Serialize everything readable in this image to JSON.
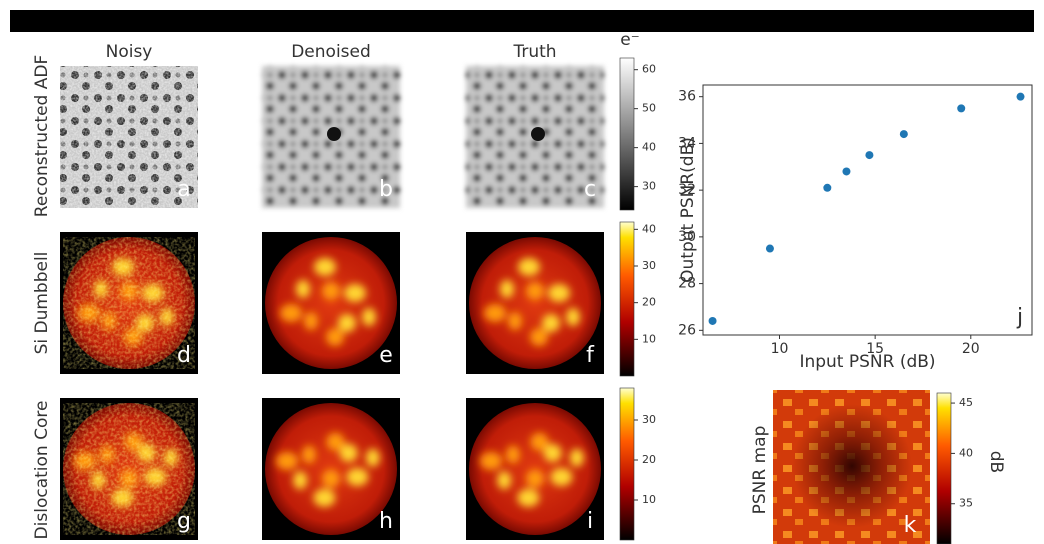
{
  "column_titles": [
    "Noisy",
    "Denoised",
    "Truth"
  ],
  "row_titles": [
    "Reconstructed ADF",
    "Si Dumbbell",
    "Dislocation Core"
  ],
  "panels": [
    "a",
    "b",
    "c",
    "d",
    "e",
    "f",
    "g",
    "h",
    "i"
  ],
  "colorbars": [
    {
      "label": "e⁻",
      "ylim": [
        24,
        63
      ],
      "yticks": [
        30,
        40,
        50,
        60
      ]
    },
    {
      "ylim": [
        0,
        42
      ],
      "yticks": [
        10,
        20,
        30,
        40
      ]
    },
    {
      "ylim": [
        0,
        38
      ],
      "yticks": [
        10,
        20,
        30
      ]
    }
  ],
  "chart_data": {
    "type": "scatter",
    "xlabel": "Input PSNR (dB)",
    "ylabel": "Output PSNR(dB)",
    "panel": "j",
    "color": "#1f77b4",
    "x": [
      6.5,
      9.5,
      12.5,
      13.5,
      14.7,
      16.5,
      19.5,
      22.6
    ],
    "values": [
      26.4,
      29.5,
      32.1,
      32.8,
      33.5,
      34.4,
      35.5,
      36.0
    ],
    "xlim": [
      6,
      23.2
    ],
    "ylim": [
      25.8,
      36.5
    ],
    "xticks": [
      10,
      15,
      20
    ],
    "yticks": [
      26,
      28,
      30,
      32,
      34,
      36
    ]
  },
  "psnr_map": {
    "title": "PSNR map",
    "panel": "k",
    "colorbar": {
      "label": "dB",
      "ylim": [
        31,
        46
      ],
      "yticks": [
        35,
        40,
        45
      ]
    }
  }
}
